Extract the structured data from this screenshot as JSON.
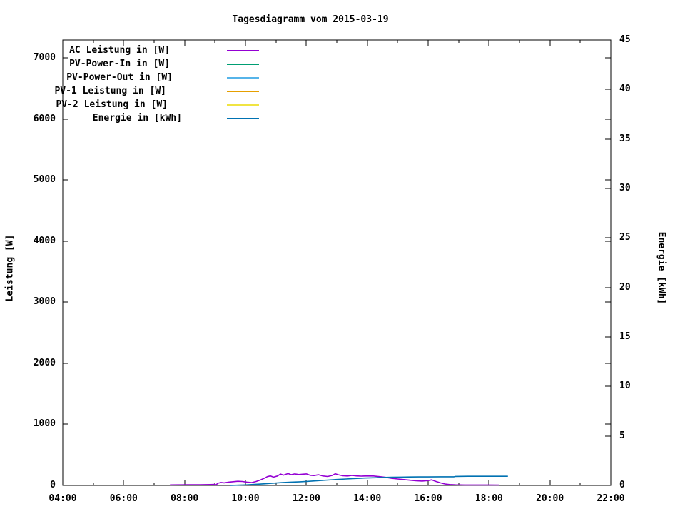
{
  "window": {
    "title": "Tagesdiagramm vom 2015-03-19"
  },
  "chart_data": {
    "type": "line",
    "title": "Tagesdiagramm vom 2015-03-19",
    "background_color": "#ffffff",
    "border_color": "#000000",
    "legend_position": "top-left-inside",
    "x_axis": {
      "label": "",
      "range_hours": [
        4,
        22
      ],
      "major_tick_labels": [
        "04:00",
        "06:00",
        "08:00",
        "10:00",
        "12:00",
        "14:00",
        "16:00",
        "18:00",
        "20:00",
        "22:00"
      ],
      "major_tick_hours": [
        4,
        6,
        8,
        10,
        12,
        14,
        16,
        18,
        20,
        22
      ],
      "minor_tick_hours": [
        5,
        7,
        9,
        11,
        13,
        15,
        17,
        19,
        21
      ]
    },
    "y_axis_left": {
      "label": "Leistung [W]",
      "range": [
        0,
        7300
      ],
      "tick_values": [
        0,
        1000,
        2000,
        3000,
        4000,
        5000,
        6000,
        7000
      ],
      "tick_labels": [
        "0",
        "1000",
        "2000",
        "3000",
        "4000",
        "5000",
        "6000",
        "7000"
      ]
    },
    "y_axis_right": {
      "label": "Energie [kWh]",
      "range": [
        0,
        45
      ],
      "tick_values": [
        0,
        5,
        10,
        15,
        20,
        25,
        30,
        35,
        40,
        45
      ],
      "tick_labels": [
        "0",
        "5",
        "10",
        "15",
        "20",
        "25",
        "30",
        "35",
        "40",
        "45"
      ]
    },
    "series": [
      {
        "id": "ac-leistung",
        "name": "AC Leistung in [W]",
        "color": "#9400d3",
        "axis": "y1",
        "plotted": true,
        "points": [
          [
            7.52,
            2
          ],
          [
            7.8,
            4
          ],
          [
            8.1,
            5
          ],
          [
            8.5,
            6
          ],
          [
            8.85,
            8
          ],
          [
            9.0,
            10
          ],
          [
            9.03,
            2
          ],
          [
            9.1,
            30
          ],
          [
            9.2,
            42
          ],
          [
            9.3,
            36
          ],
          [
            9.45,
            48
          ],
          [
            9.6,
            55
          ],
          [
            9.75,
            62
          ],
          [
            9.9,
            58
          ],
          [
            10.05,
            48
          ],
          [
            10.2,
            40
          ],
          [
            10.35,
            58
          ],
          [
            10.5,
            85
          ],
          [
            10.62,
            112
          ],
          [
            10.72,
            138
          ],
          [
            10.82,
            150
          ],
          [
            10.92,
            130
          ],
          [
            11.05,
            148
          ],
          [
            11.15,
            180
          ],
          [
            11.25,
            162
          ],
          [
            11.4,
            188
          ],
          [
            11.5,
            170
          ],
          [
            11.62,
            182
          ],
          [
            11.75,
            172
          ],
          [
            11.88,
            178
          ],
          [
            12.0,
            182
          ],
          [
            12.12,
            160
          ],
          [
            12.25,
            156
          ],
          [
            12.4,
            168
          ],
          [
            12.55,
            148
          ],
          [
            12.7,
            140
          ],
          [
            12.85,
            158
          ],
          [
            12.95,
            185
          ],
          [
            13.05,
            168
          ],
          [
            13.2,
            152
          ],
          [
            13.35,
            148
          ],
          [
            13.5,
            158
          ],
          [
            13.65,
            150
          ],
          [
            13.8,
            146
          ],
          [
            14.0,
            150
          ],
          [
            14.2,
            148
          ],
          [
            14.4,
            138
          ],
          [
            14.5,
            132
          ],
          [
            14.6,
            126
          ],
          [
            14.8,
            110
          ],
          [
            15.0,
            100
          ],
          [
            15.2,
            90
          ],
          [
            15.4,
            80
          ],
          [
            15.6,
            70
          ],
          [
            15.8,
            66
          ],
          [
            16.0,
            74
          ],
          [
            16.12,
            85
          ],
          [
            16.25,
            60
          ],
          [
            16.4,
            36
          ],
          [
            16.55,
            18
          ],
          [
            16.7,
            8
          ],
          [
            16.9,
            3
          ],
          [
            17.2,
            1
          ],
          [
            17.6,
            1
          ],
          [
            18.0,
            1
          ],
          [
            18.33,
            0
          ]
        ]
      },
      {
        "id": "pv-power-in",
        "name": "PV-Power-In in [W]",
        "color": "#009e73",
        "axis": "y1",
        "plotted": false,
        "points": []
      },
      {
        "id": "pv-power-out",
        "name": "PV-Power-Out in [W]",
        "color": "#56b4e9",
        "axis": "y1",
        "plotted": false,
        "points": []
      },
      {
        "id": "pv1-leistung",
        "name": "PV-1 Leistung in [W]",
        "color": "#e69f00",
        "axis": "y1",
        "plotted": false,
        "points": []
      },
      {
        "id": "pv2-leistung",
        "name": "PV-2 Leistung in [W]",
        "color": "#f0e442",
        "axis": "y1",
        "plotted": false,
        "points": []
      },
      {
        "id": "energie",
        "name": "Energie in [kWh]",
        "color": "#0072b2",
        "axis": "y2",
        "plotted": true,
        "points": [
          [
            9.5,
            0.0
          ],
          [
            9.8,
            0.03
          ],
          [
            10.0,
            0.05
          ],
          [
            10.3,
            0.1
          ],
          [
            10.6,
            0.16
          ],
          [
            10.9,
            0.22
          ],
          [
            11.2,
            0.28
          ],
          [
            11.5,
            0.33
          ],
          [
            11.8,
            0.37
          ],
          [
            12.1,
            0.42
          ],
          [
            12.4,
            0.48
          ],
          [
            12.7,
            0.54
          ],
          [
            13.0,
            0.6
          ],
          [
            13.3,
            0.65
          ],
          [
            13.6,
            0.7
          ],
          [
            13.9,
            0.74
          ],
          [
            14.2,
            0.77
          ],
          [
            14.5,
            0.8
          ],
          [
            14.8,
            0.82
          ],
          [
            15.1,
            0.84
          ],
          [
            15.4,
            0.85
          ],
          [
            15.7,
            0.86
          ],
          [
            16.0,
            0.86
          ],
          [
            16.4,
            0.87
          ],
          [
            16.85,
            0.87
          ],
          [
            16.9,
            0.91
          ],
          [
            17.3,
            0.92
          ],
          [
            18.0,
            0.92
          ],
          [
            18.62,
            0.92
          ]
        ]
      }
    ]
  }
}
